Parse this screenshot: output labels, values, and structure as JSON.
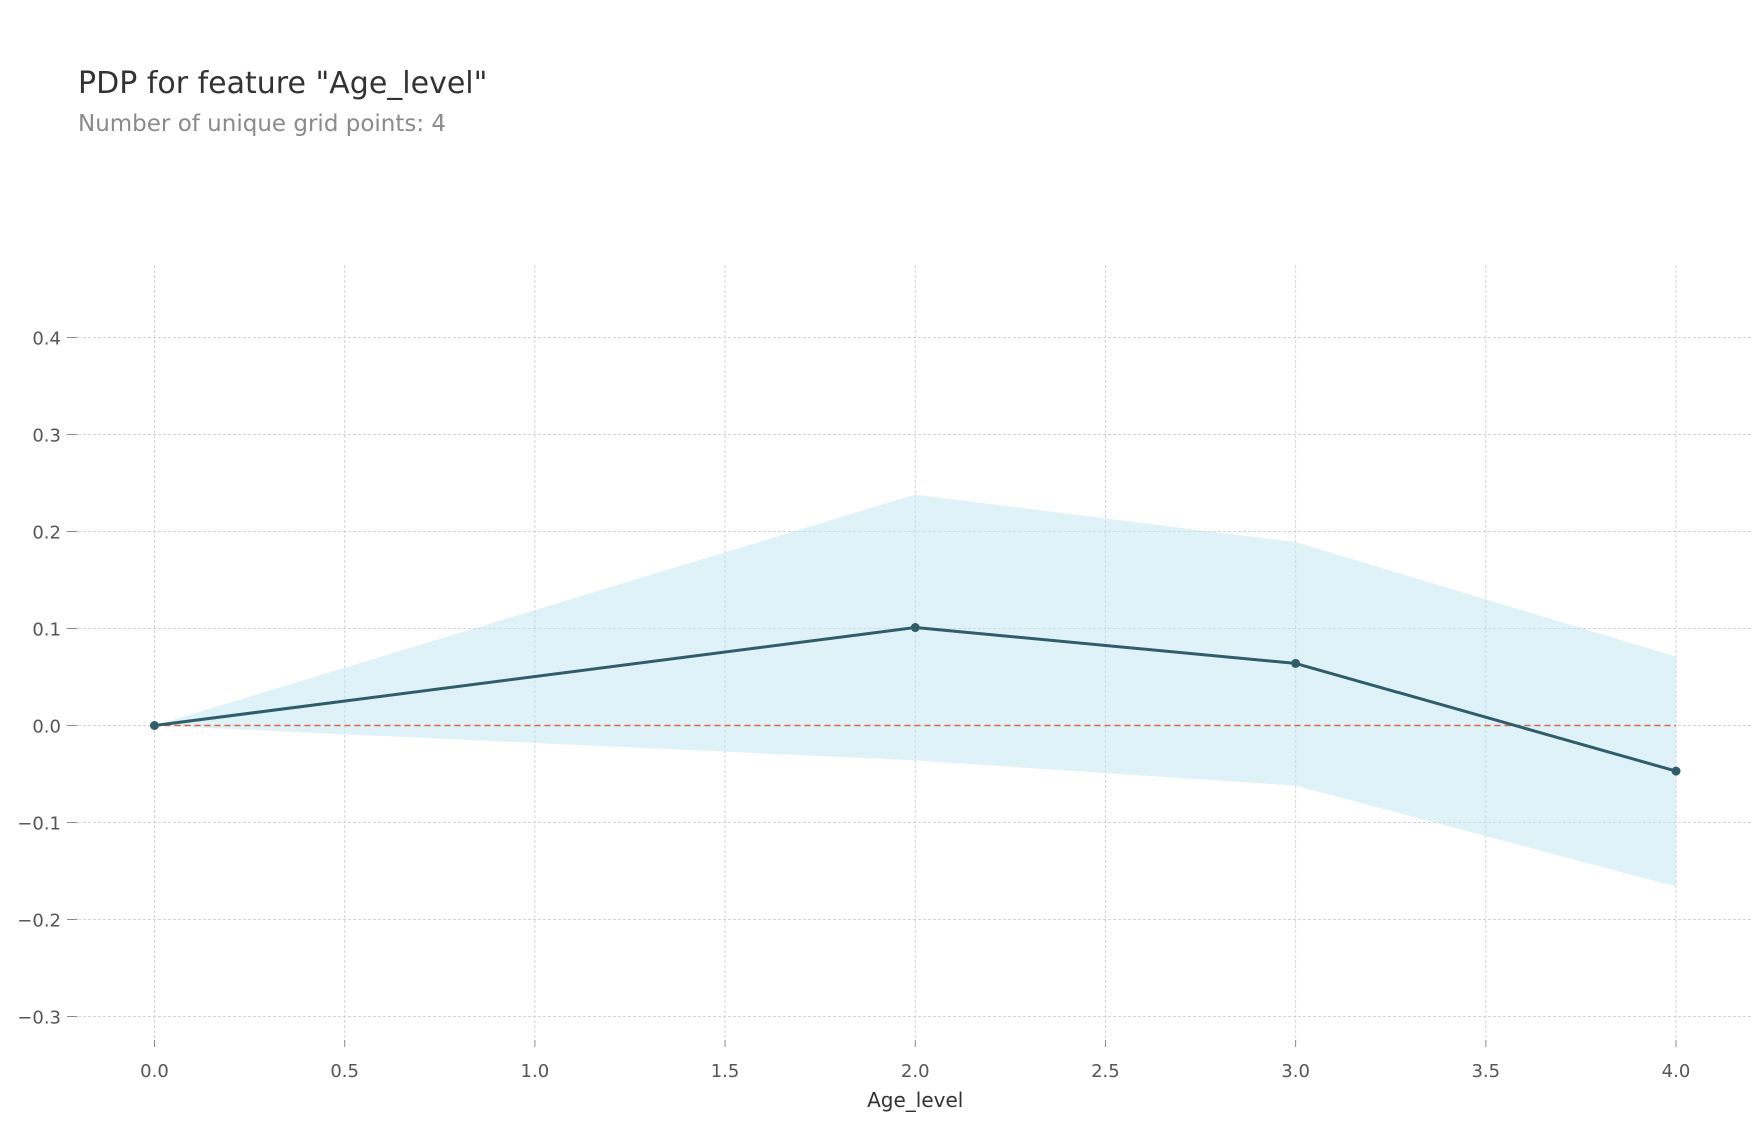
{
  "title": "PDP for feature \"Age_level\"",
  "subtitle": "Number of unique grid points: 4",
  "chart_data": {
    "type": "line",
    "title": "PDP for feature \"Age_level\"",
    "subtitle": "Number of unique grid points: 4",
    "xlabel": "Age_level",
    "ylabel": "",
    "xlim": [
      -0.2,
      4.0
    ],
    "ylim": [
      -0.31,
      0.47
    ],
    "xticks": [
      0.0,
      0.5,
      1.0,
      1.5,
      2.0,
      2.5,
      3.0,
      3.5,
      4.0
    ],
    "xtick_labels": [
      "0.0",
      "0.5",
      "1.0",
      "1.5",
      "2.0",
      "2.5",
      "3.0",
      "3.5",
      "4.0"
    ],
    "yticks": [
      0.4,
      0.3,
      0.2,
      0.1,
      0.0,
      -0.1,
      -0.2,
      -0.3
    ],
    "ytick_labels": [
      "0.4",
      "0.3",
      "0.2",
      "0.1",
      "0.0",
      "−0.1",
      "−0.2",
      "−0.3"
    ],
    "grid": true,
    "series": [
      {
        "x": [
          0.0,
          2.0,
          3.0,
          4.0
        ],
        "y": [
          0.0,
          0.101,
          0.064,
          -0.047
        ],
        "color": "#2f5d6a"
      }
    ],
    "band": {
      "x": [
        0.0,
        2.0,
        3.0,
        4.0
      ],
      "upper": [
        0.0,
        0.238,
        0.189,
        0.071
      ],
      "lower": [
        0.0,
        -0.036,
        -0.062,
        -0.166
      ],
      "color": "#bfe6ef"
    },
    "reference_line": {
      "y": 0.0,
      "color": "#e0634b",
      "style": "dashed"
    }
  }
}
